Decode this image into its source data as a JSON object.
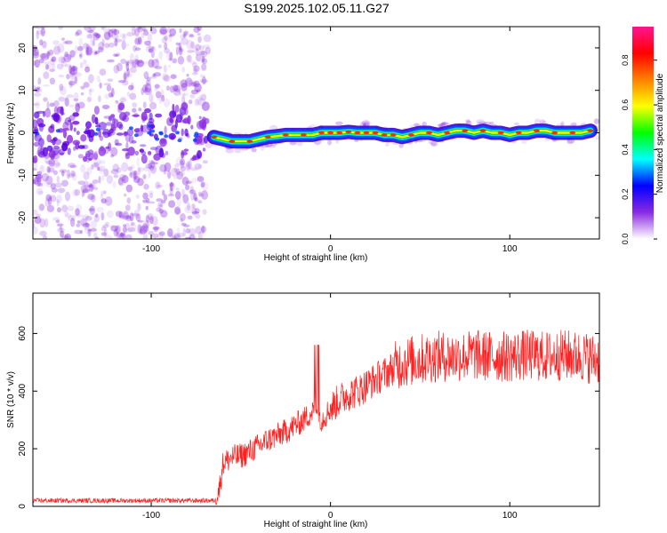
{
  "title": "S199.2025.102.05.11.G27",
  "top_panel": {
    "xlabel": "Height of straight line (km)",
    "ylabel": "Frequency (Hz)"
  },
  "colorbar": {
    "label": "Normalized spectral amplitude",
    "range": [
      0,
      0.95
    ],
    "ticks": [
      "0.0",
      "0.2",
      "0.4",
      "0.6",
      "0.8"
    ],
    "colors": [
      "#ffffff",
      "#8a2be2",
      "#0000ff",
      "#00ffff",
      "#00ff00",
      "#ffff00",
      "#ff8000",
      "#ff0000",
      "#ff1493"
    ]
  },
  "bottom_panel": {
    "xlabel": "Height of straight line (km)",
    "ylabel": "SNR (10 * v/v)"
  },
  "chart_data": [
    {
      "type": "heatmap",
      "title": "S199.2025.102.05.11.G27",
      "xlabel": "Height of straight line (km)",
      "ylabel": "Frequency (Hz)",
      "xlim": [
        -166,
        150
      ],
      "ylim": [
        -25,
        25
      ],
      "x_ticks": [
        -100,
        0,
        100
      ],
      "y_ticks": [
        -20,
        -10,
        0,
        10,
        20
      ],
      "colorbar_label": "Normalized spectral amplitude",
      "colorbar_range": [
        0,
        0.95
      ],
      "series": [
        {
          "name": "peak frequency trace",
          "x": [
            -65,
            -60,
            -55,
            -50,
            -45,
            -40,
            -35,
            -30,
            -25,
            -20,
            -15,
            -10,
            -5,
            0,
            5,
            10,
            15,
            20,
            25,
            30,
            35,
            40,
            45,
            50,
            55,
            60,
            65,
            70,
            75,
            80,
            85,
            90,
            95,
            100,
            105,
            110,
            115,
            120,
            125,
            130,
            135,
            140,
            145
          ],
          "y": [
            -1.0,
            -1.5,
            -2.0,
            -2.0,
            -2.0,
            -1.5,
            -1.0,
            -0.8,
            -0.5,
            -0.5,
            -0.5,
            -0.5,
            0.0,
            0.0,
            0.0,
            0.2,
            0.0,
            0.0,
            0.0,
            -0.5,
            -0.5,
            -1.0,
            -0.5,
            0.0,
            0.0,
            -0.5,
            0.0,
            0.5,
            0.5,
            0.0,
            0.5,
            0.0,
            0.0,
            -0.5,
            0.0,
            0.0,
            0.5,
            0.5,
            0.0,
            0.0,
            0.0,
            0.0,
            0.5
          ]
        }
      ]
    },
    {
      "type": "line",
      "xlabel": "Height of straight line (km)",
      "ylabel": "SNR (10 * v/v)",
      "xlim": [
        -166,
        150
      ],
      "ylim": [
        0,
        740
      ],
      "x_ticks": [
        -100,
        0,
        100
      ],
      "y_ticks": [
        0,
        200,
        400,
        600
      ],
      "color": "#ff0000",
      "x": [
        -166,
        -140,
        -120,
        -100,
        -80,
        -70,
        -64,
        -62,
        -60,
        -55,
        -50,
        -45,
        -40,
        -35,
        -30,
        -25,
        -20,
        -15,
        -10,
        -8,
        -5,
        0,
        5,
        10,
        15,
        20,
        25,
        30,
        35,
        40,
        50,
        60,
        70,
        80,
        90,
        100,
        110,
        120,
        130,
        140,
        150
      ],
      "y": [
        20,
        20,
        20,
        20,
        20,
        20,
        20,
        60,
        150,
        170,
        175,
        190,
        210,
        230,
        245,
        260,
        280,
        300,
        330,
        350,
        300,
        340,
        370,
        390,
        400,
        420,
        440,
        460,
        480,
        500,
        510,
        520,
        520,
        525,
        520,
        520,
        525,
        520,
        525,
        520,
        510
      ]
    }
  ]
}
